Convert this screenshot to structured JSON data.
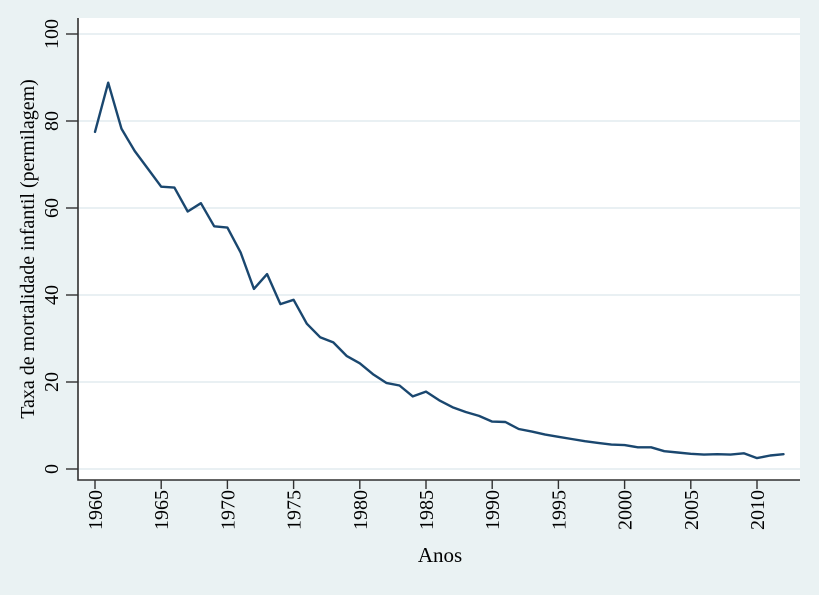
{
  "chart_data": {
    "type": "line",
    "title": "",
    "xlabel": "Anos",
    "ylabel": "Taxa de mortalidade infantil (permilagem)",
    "x": [
      1960,
      1961,
      1962,
      1963,
      1964,
      1965,
      1966,
      1967,
      1968,
      1969,
      1970,
      1971,
      1972,
      1973,
      1974,
      1975,
      1976,
      1977,
      1978,
      1979,
      1980,
      1981,
      1982,
      1983,
      1984,
      1985,
      1986,
      1987,
      1988,
      1989,
      1990,
      1991,
      1992,
      1993,
      1994,
      1995,
      1996,
      1997,
      1998,
      1999,
      2000,
      2001,
      2002,
      2003,
      2004,
      2005,
      2006,
      2007,
      2008,
      2009,
      2010,
      2011,
      2012
    ],
    "values": [
      77.5,
      88.8,
      78.2,
      73.1,
      69.0,
      64.9,
      64.7,
      59.2,
      61.1,
      55.8,
      55.5,
      49.8,
      41.4,
      44.8,
      37.9,
      38.9,
      33.4,
      30.3,
      29.1,
      26.0,
      24.3,
      21.8,
      19.8,
      19.2,
      16.7,
      17.8,
      15.8,
      14.2,
      13.1,
      12.2,
      10.9,
      10.8,
      9.2,
      8.6,
      7.9,
      7.4,
      6.9,
      6.4,
      6.0,
      5.6,
      5.5,
      5.0,
      5.0,
      4.1,
      3.8,
      3.5,
      3.3,
      3.4,
      3.3,
      3.6,
      2.5,
      3.1,
      3.4
    ],
    "xticks": [
      1960,
      1965,
      1970,
      1975,
      1980,
      1985,
      1990,
      1995,
      2000,
      2005,
      2010
    ],
    "yticks": [
      0,
      20,
      40,
      60,
      80,
      100
    ],
    "xlim": [
      1958.7,
      2013.3
    ],
    "ylim": [
      0,
      100
    ],
    "grid": "horizontal-only",
    "legend": "none",
    "colors": {
      "line": "#1a476f",
      "background": "#eaf2f3",
      "plot_background": "#ffffff",
      "grid": "#e2ecef",
      "axis": "#303030",
      "text": "#000000"
    }
  }
}
